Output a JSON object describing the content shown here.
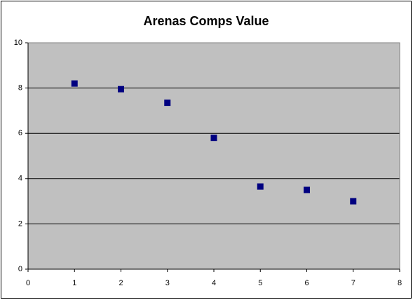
{
  "chart_data": {
    "type": "scatter",
    "title": "Arenas Comps Value",
    "x": [
      1,
      2,
      3,
      4,
      5,
      6,
      7
    ],
    "values": [
      8.2,
      7.95,
      7.35,
      5.8,
      3.65,
      3.5,
      3.0
    ],
    "color": "#000080",
    "plot_background": "#c0c0c0",
    "xlim": [
      0,
      8
    ],
    "xticks": [
      0,
      1,
      2,
      3,
      4,
      5,
      6,
      7,
      8
    ],
    "ylim": [
      0,
      10
    ],
    "yticks": [
      0,
      2,
      4,
      6,
      8,
      10
    ],
    "grid": true
  }
}
